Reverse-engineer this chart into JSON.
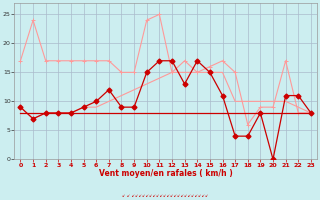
{
  "hours": [
    0,
    1,
    2,
    3,
    4,
    5,
    6,
    7,
    8,
    9,
    10,
    11,
    12,
    13,
    14,
    15,
    16,
    17,
    18,
    19,
    20,
    21,
    22,
    23
  ],
  "line_flat": [
    8,
    8,
    8,
    8,
    8,
    8,
    8,
    8,
    8,
    8,
    8,
    8,
    8,
    8,
    8,
    8,
    8,
    8,
    8,
    8,
    8,
    8,
    8,
    8
  ],
  "line_trend": [
    9,
    7,
    8,
    8,
    8,
    9,
    9,
    10,
    11,
    12,
    13,
    14,
    15,
    15,
    15,
    15,
    15,
    10,
    10,
    10,
    10,
    10,
    9,
    8
  ],
  "line_red_dark": [
    9,
    7,
    8,
    8,
    8,
    9,
    10,
    12,
    9,
    9,
    15,
    17,
    17,
    13,
    17,
    15,
    11,
    4,
    4,
    8,
    0,
    11,
    11,
    8
  ],
  "line_pink": [
    17,
    24,
    17,
    17,
    17,
    17,
    17,
    17,
    15,
    15,
    24,
    25,
    15,
    17,
    15,
    16,
    17,
    15,
    6,
    9,
    9,
    17,
    8,
    8
  ],
  "color_flat": "#CC0000",
  "color_trend": "#FF9999",
  "color_red_dark": "#CC0000",
  "color_pink": "#FF9999",
  "bg_color": "#CCEEF0",
  "grid_color": "#AABBCC",
  "xlabel": "Vent moyen/en rafales ( km/h )",
  "xlim_min": -0.5,
  "xlim_max": 23.5,
  "ylim_min": 0,
  "ylim_max": 27,
  "yticks": [
    0,
    5,
    10,
    15,
    20,
    25
  ],
  "xticks": [
    0,
    1,
    2,
    3,
    4,
    5,
    6,
    7,
    8,
    9,
    10,
    11,
    12,
    13,
    14,
    15,
    16,
    17,
    18,
    19,
    20,
    21,
    22,
    23
  ]
}
